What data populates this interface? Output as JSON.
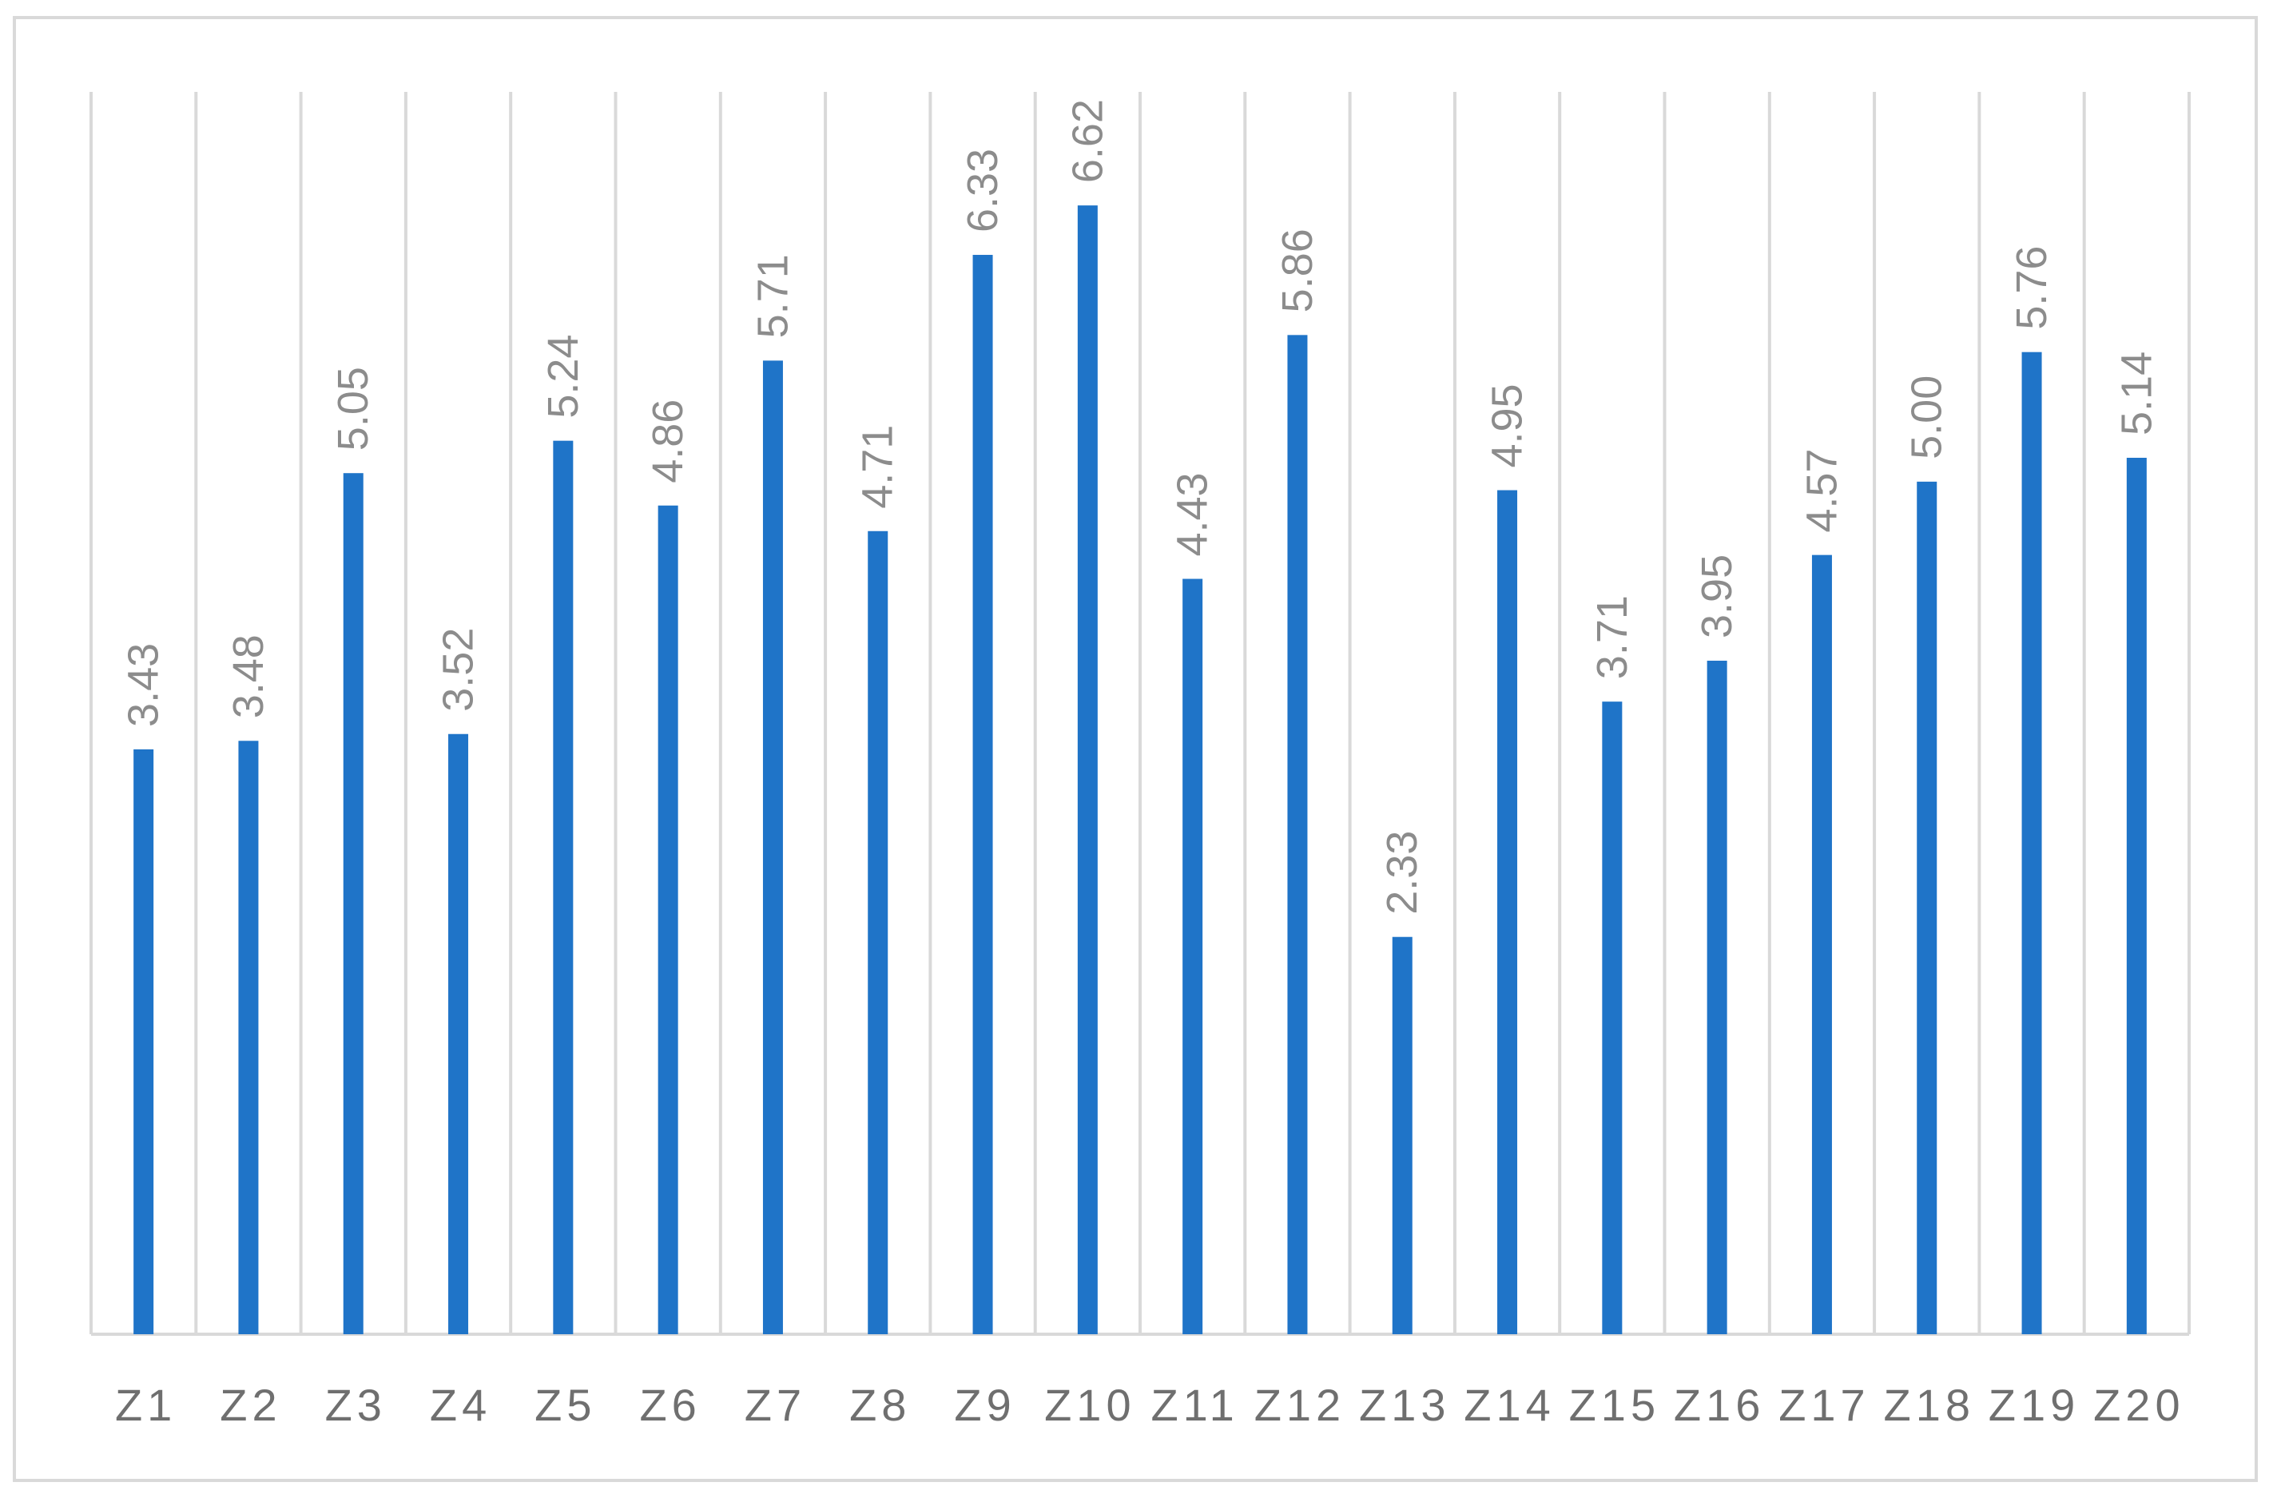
{
  "chart_data": {
    "type": "bar",
    "title": "",
    "xlabel": "",
    "ylabel": "",
    "categories": [
      "Z1",
      "Z2",
      "Z3",
      "Z4",
      "Z5",
      "Z6",
      "Z7",
      "Z8",
      "Z9",
      "Z10",
      "Z11",
      "Z12",
      "Z13",
      "Z14",
      "Z15",
      "Z16",
      "Z17",
      "Z18",
      "Z19",
      "Z20"
    ],
    "values": [
      3.43,
      3.48,
      5.05,
      3.52,
      5.24,
      4.86,
      5.71,
      4.71,
      6.33,
      6.62,
      4.43,
      5.86,
      2.33,
      4.95,
      3.71,
      3.95,
      4.57,
      5.0,
      5.76,
      5.14
    ],
    "value_labels": [
      "3.43",
      "3.48",
      "5.05",
      "3.52",
      "5.24",
      "4.86",
      "5.71",
      "4.71",
      "6.33",
      "6.62",
      "4.43",
      "5.86",
      "2.33",
      "4.95",
      "3.71",
      "3.95",
      "4.57",
      "5.00",
      "5.76",
      "5.14"
    ],
    "ylim": [
      0,
      7.3
    ],
    "grid": "vertical category separators",
    "legend": "none",
    "colors": {
      "bar": "#1f74c8",
      "grid": "#d9d9d9",
      "data_label": "#8c8c8c",
      "tick_label": "#6f6f6f"
    }
  }
}
